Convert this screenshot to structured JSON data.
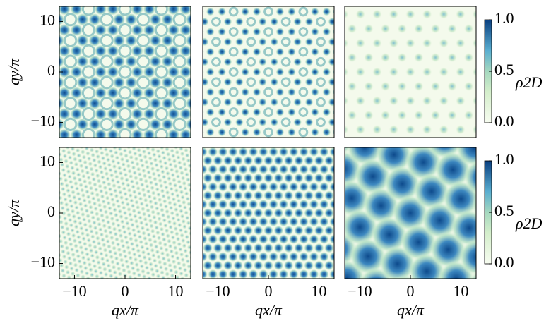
{
  "chart_data": [
    {
      "type": "heatmap",
      "xlim": [
        -13,
        13
      ],
      "ylim": [
        -13,
        13
      ],
      "ylabel": "qy/π",
      "yticks": [
        {
          "value": -10,
          "label": "−10"
        },
        0,
        10
      ]
    },
    {
      "type": "heatmap",
      "xlim": [
        -13,
        13
      ],
      "ylim": [
        -13,
        13
      ]
    },
    {
      "type": "heatmap",
      "xlim": [
        -13,
        13
      ],
      "ylim": [
        -13,
        13
      ],
      "colorbar": {
        "label": "ρ2D",
        "lim": [
          0,
          1
        ],
        "ticks": [
          {
            "value": 0,
            "label": "0.0"
          },
          0.5,
          {
            "value": 1,
            "label": "1.0"
          }
        ]
      }
    },
    {
      "type": "heatmap",
      "xlim": [
        -13,
        13
      ],
      "ylim": [
        -13,
        13
      ],
      "xlabel": "qx/π",
      "ylabel": "qy/π",
      "xticks": [
        {
          "value": -10,
          "label": "−10"
        },
        0,
        10
      ],
      "yticks": [
        {
          "value": -10,
          "label": "−10"
        },
        0,
        10
      ]
    },
    {
      "type": "heatmap",
      "xlim": [
        -13,
        13
      ],
      "ylim": [
        -13,
        13
      ],
      "xlabel": "qx/π",
      "xticks": [
        {
          "value": -10,
          "label": "−10"
        },
        0,
        10
      ]
    },
    {
      "type": "heatmap",
      "xlim": [
        -13,
        13
      ],
      "ylim": [
        -13,
        13
      ],
      "xlabel": "qx/π",
      "xticks": [
        {
          "value": -10,
          "label": "−10"
        },
        0,
        10
      ],
      "colorbar": {
        "label": "ρ2D",
        "lim": [
          0,
          1
        ],
        "ticks": [
          {
            "value": 0,
            "label": "0.0"
          },
          0.5,
          {
            "value": 1,
            "label": "1.0"
          }
        ]
      }
    }
  ]
}
